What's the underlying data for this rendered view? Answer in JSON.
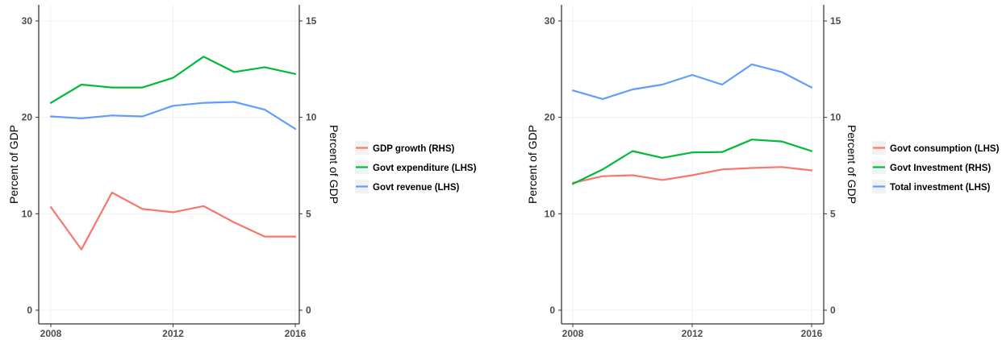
{
  "chart_data": [
    {
      "type": "line",
      "x": [
        2008,
        2009,
        2010,
        2011,
        2012,
        2013,
        2014,
        2015,
        2016
      ],
      "x_ticks": [
        "2008",
        "2012",
        "2016"
      ],
      "xlim": [
        2008,
        2016
      ],
      "ylabel": "Percent of GDP",
      "ylabel_right": "Percent of GDP",
      "ylim": [
        0,
        30
      ],
      "ylim_right": [
        0,
        15
      ],
      "y_ticks": [
        "0",
        "10",
        "20",
        "30"
      ],
      "y_ticks_right": [
        "0",
        "5",
        "10",
        "15"
      ],
      "grid": true,
      "legend_position": "right",
      "series": [
        {
          "name": "GDP growth (RHS)",
          "axis": "right",
          "color": "#F8766D",
          "values": [
            5.35,
            3.15,
            6.1,
            5.25,
            5.08,
            5.4,
            4.55,
            3.82,
            3.82
          ]
        },
        {
          "name": "Govt expenditure (LHS)",
          "axis": "left",
          "color": "#00BA38",
          "values": [
            21.5,
            23.4,
            23.1,
            23.1,
            24.1,
            26.3,
            24.7,
            25.2,
            24.5
          ]
        },
        {
          "name": "Govt revenue (LHS)",
          "axis": "left",
          "color": "#619CFF",
          "values": [
            20.1,
            19.9,
            20.2,
            20.1,
            21.2,
            21.5,
            21.6,
            20.8,
            18.8
          ]
        }
      ]
    },
    {
      "type": "line",
      "x": [
        2008,
        2009,
        2010,
        2011,
        2012,
        2013,
        2014,
        2015,
        2016
      ],
      "x_ticks": [
        "2008",
        "2012",
        "2016"
      ],
      "xlim": [
        2008,
        2016
      ],
      "ylabel": "Percent of GDP",
      "ylabel_right": "Percent of GDP",
      "ylim": [
        0,
        30
      ],
      "ylim_right": [
        0,
        15
      ],
      "y_ticks": [
        "0",
        "10",
        "20",
        "30"
      ],
      "y_ticks_right": [
        "0",
        "5",
        "10",
        "15"
      ],
      "grid": true,
      "legend_position": "right",
      "series": [
        {
          "name": "Govt consumption (LHS)",
          "axis": "left",
          "color": "#F8766D",
          "values": [
            13.2,
            13.9,
            14.0,
            13.5,
            14.0,
            14.6,
            14.75,
            14.85,
            14.5
          ]
        },
        {
          "name": "Govt Investment (RHS)",
          "axis": "right",
          "color": "#00BA38",
          "values": [
            6.55,
            7.3,
            8.25,
            7.9,
            8.18,
            8.2,
            8.85,
            8.75,
            8.25
          ]
        },
        {
          "name": "Total investment (LHS)",
          "axis": "left",
          "color": "#619CFF",
          "values": [
            22.8,
            21.9,
            22.9,
            23.4,
            24.4,
            23.4,
            25.5,
            24.7,
            23.1
          ]
        }
      ]
    }
  ]
}
